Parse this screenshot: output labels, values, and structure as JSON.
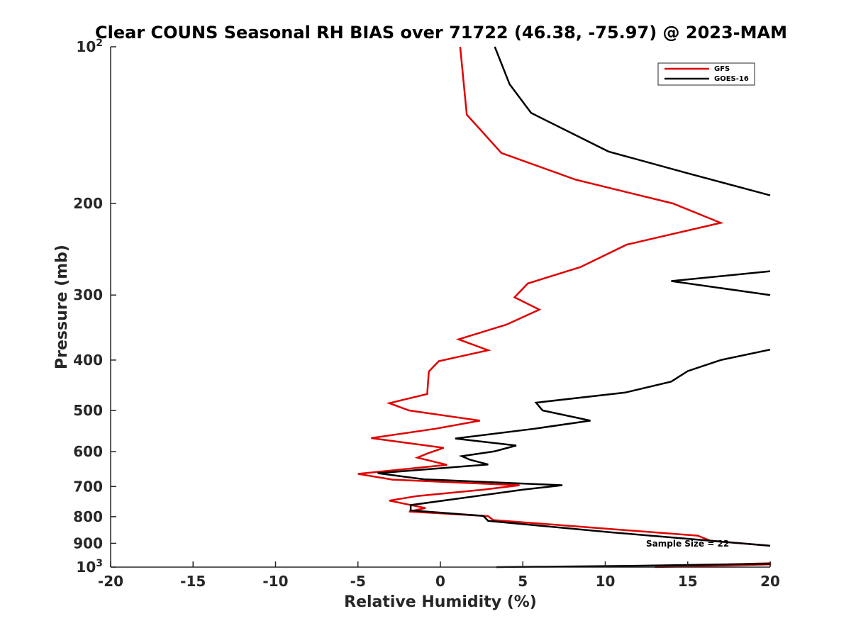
{
  "chart_data": {
    "type": "line",
    "title": "Clear COUNS Seasonal RH BIAS over 71722 (46.38, -75.97) @ 2023-MAM",
    "xlabel": "Relative Humidity (%)",
    "ylabel": "Pressure (mb)",
    "xlim": [
      -20,
      20
    ],
    "ylim": [
      100,
      1000
    ],
    "yscale": "log",
    "yreversed": true,
    "xticks": [
      {
        "value": -20,
        "label": "-20"
      },
      {
        "value": -15,
        "label": "-15"
      },
      {
        "value": -10,
        "label": "-10"
      },
      {
        "value": -5,
        "label": "-5"
      },
      {
        "value": 0,
        "label": "0"
      },
      {
        "value": 5,
        "label": "5"
      },
      {
        "value": 10,
        "label": "10"
      },
      {
        "value": 15,
        "label": "15"
      },
      {
        "value": 20,
        "label": "20"
      }
    ],
    "yticks": [
      {
        "value": 100,
        "label": "10",
        "sup": "2"
      },
      {
        "value": 200,
        "label": "200"
      },
      {
        "value": 300,
        "label": "300"
      },
      {
        "value": 400,
        "label": "400"
      },
      {
        "value": 500,
        "label": "500"
      },
      {
        "value": 600,
        "label": "600"
      },
      {
        "value": 700,
        "label": "700"
      },
      {
        "value": 800,
        "label": "800"
      },
      {
        "value": 900,
        "label": "900"
      },
      {
        "value": 1000,
        "label": "10",
        "sup": "3"
      }
    ],
    "legend_position": "top-right",
    "annotation": "Sample Size = 22",
    "series": [
      {
        "name": "GFS",
        "color": "#e00000",
        "points": [
          [
            1.2,
            100
          ],
          [
            1.6,
            135
          ],
          [
            3.7,
            160
          ],
          [
            8.2,
            180
          ],
          [
            14.1,
            200
          ],
          [
            17.0,
            218
          ],
          [
            11.3,
            240
          ],
          [
            8.5,
            265
          ],
          [
            5.3,
            285
          ],
          [
            4.5,
            303
          ],
          [
            6.0,
            320
          ],
          [
            4.0,
            342
          ],
          [
            1.1,
            365
          ],
          [
            2.9,
            383
          ],
          [
            -0.1,
            402
          ],
          [
            -0.7,
            421
          ],
          [
            -0.8,
            465
          ],
          [
            -3.1,
            484
          ],
          [
            -1.9,
            500
          ],
          [
            2.4,
            523
          ],
          [
            -0.3,
            542
          ],
          [
            -4.2,
            565
          ],
          [
            0.2,
            590
          ],
          [
            -0.8,
            605
          ],
          [
            -1.4,
            616
          ],
          [
            0.4,
            636
          ],
          [
            -5.0,
            662
          ],
          [
            -2.9,
            679
          ],
          [
            4.8,
            696
          ],
          [
            2.6,
            710
          ],
          [
            -1.4,
            730
          ],
          [
            -3.1,
            745
          ],
          [
            -0.9,
            770
          ],
          [
            -1.9,
            782
          ],
          [
            2.9,
            798
          ],
          [
            3.2,
            812
          ],
          [
            15.6,
            870
          ],
          [
            16.4,
            890
          ],
          [
            20.0,
            910
          ]
        ],
        "bottom_points": [
          [
            13.0,
            1000
          ],
          [
            20.0,
            988
          ],
          [
            20.0,
            983
          ],
          [
            14.0,
            995
          ]
        ]
      },
      {
        "name": "GOES-16",
        "color": "#000000",
        "points": [
          [
            3.3,
            100
          ],
          [
            4.2,
            118
          ],
          [
            5.5,
            134
          ],
          [
            10.2,
            159
          ],
          [
            15.0,
            175
          ],
          [
            19.2,
            190
          ],
          [
            20.0,
            193
          ]
        ],
        "segment2": [
          [
            20.0,
            270
          ],
          [
            14.0,
            282
          ],
          [
            20.0,
            300
          ]
        ],
        "segment3": [
          [
            20.0,
            382
          ],
          [
            17.0,
            400
          ],
          [
            15.0,
            420
          ],
          [
            14.0,
            440
          ],
          [
            11.2,
            462
          ],
          [
            5.8,
            483
          ],
          [
            6.2,
            500
          ],
          [
            9.1,
            523
          ],
          [
            5.7,
            542
          ],
          [
            0.9,
            566
          ],
          [
            4.6,
            584
          ],
          [
            3.3,
            599
          ],
          [
            1.3,
            612
          ],
          [
            1.8,
            622
          ],
          [
            2.9,
            635
          ],
          [
            -3.8,
            660
          ],
          [
            -1.0,
            678
          ],
          [
            7.4,
            696
          ],
          [
            5.0,
            710
          ],
          [
            -1.8,
            760
          ],
          [
            -1.8,
            778
          ],
          [
            2.6,
            797
          ],
          [
            2.9,
            815
          ],
          [
            10.5,
            858
          ],
          [
            20.0,
            910
          ]
        ],
        "bottom_points": [
          [
            3.4,
            1000
          ],
          [
            11.0,
            995
          ],
          [
            20.0,
            985
          ]
        ]
      }
    ]
  }
}
